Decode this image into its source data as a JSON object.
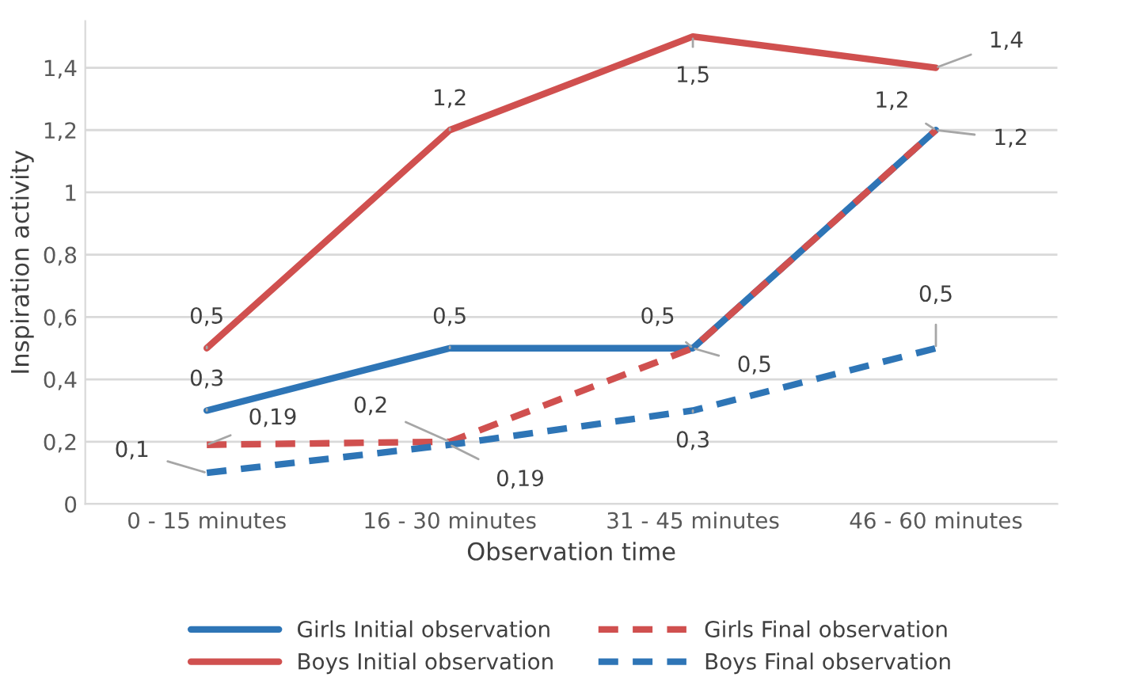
{
  "chart_data": {
    "type": "line",
    "xlabel": "Observation time",
    "ylabel": "Inspiration activity",
    "categories": [
      "0 - 15 minutes",
      "16 - 30 minutes",
      "31 - 45 minutes",
      "46 - 60 minutes"
    ],
    "series": [
      {
        "name": "Girls Initial observation",
        "color": "#2e75b6",
        "line_style": "solid",
        "values": [
          0.3,
          0.5,
          0.5,
          1.2
        ],
        "value_labels": [
          "0,3",
          "0,5",
          "0,5",
          "1,2"
        ]
      },
      {
        "name": "Boys Initial observation",
        "color": "#d0504f",
        "line_style": "solid",
        "values": [
          0.5,
          1.2,
          1.5,
          1.4
        ],
        "value_labels": [
          "0,5",
          "1,2",
          "1,5",
          "1,4"
        ]
      },
      {
        "name": "Girls Final observation",
        "color": "#d0504f",
        "line_style": "dashed",
        "values": [
          0.19,
          0.2,
          0.5,
          1.2
        ],
        "value_labels": [
          "0,19",
          "0,2",
          "0,5",
          "1,2"
        ]
      },
      {
        "name": "Boys Final observation",
        "color": "#2e75b6",
        "line_style": "dashed",
        "values": [
          0.1,
          0.19,
          0.3,
          0.5
        ],
        "value_labels": [
          "0,1",
          "0,19",
          "0,3",
          "0,5"
        ]
      }
    ],
    "ylim": [
      0,
      1.55
    ],
    "yticks": [
      {
        "value": 0,
        "label": "0"
      },
      {
        "value": 0.2,
        "label": "0,2"
      },
      {
        "value": 0.4,
        "label": "0,4"
      },
      {
        "value": 0.6,
        "label": "0,6"
      },
      {
        "value": 0.8,
        "label": "0,8"
      },
      {
        "value": 1,
        "label": "1"
      },
      {
        "value": 1.2,
        "label": "1,2"
      },
      {
        "value": 1.4,
        "label": "1,4"
      }
    ],
    "grid": "y",
    "legend": "bottom",
    "marker": "none"
  }
}
